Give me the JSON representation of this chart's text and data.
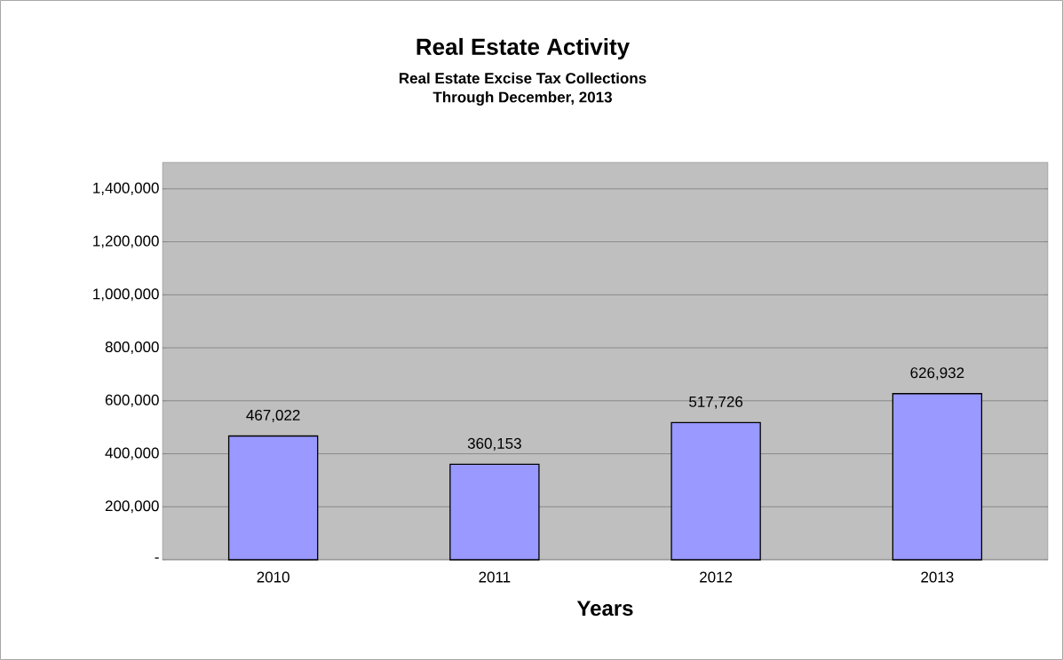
{
  "chart_data": {
    "type": "bar",
    "title": "Real Estate Activity",
    "subtitle": "Real Estate Excise Tax Collections",
    "annotations": [
      "Through December, 2013"
    ],
    "xlabel": "Years",
    "categories": [
      "2010",
      "2011",
      "2012",
      "2013"
    ],
    "values": [
      467022,
      360153,
      517726,
      626932
    ],
    "value_labels": [
      "467,022",
      "360,153",
      "517,726",
      "626,932"
    ],
    "color": "#9999ff",
    "ylim": [
      0,
      1500000
    ],
    "yticks": [
      {
        "value": 0,
        "label": "-"
      },
      {
        "value": 200000,
        "label": "200,000"
      },
      {
        "value": 400000,
        "label": "400,000"
      },
      {
        "value": 600000,
        "label": "600,000"
      },
      {
        "value": 800000,
        "label": "800,000"
      },
      {
        "value": 1000000,
        "label": "1,000,000"
      },
      {
        "value": 1200000,
        "label": "1,200,000"
      },
      {
        "value": 1400000,
        "label": "1,400,000"
      }
    ],
    "grid": "y"
  }
}
